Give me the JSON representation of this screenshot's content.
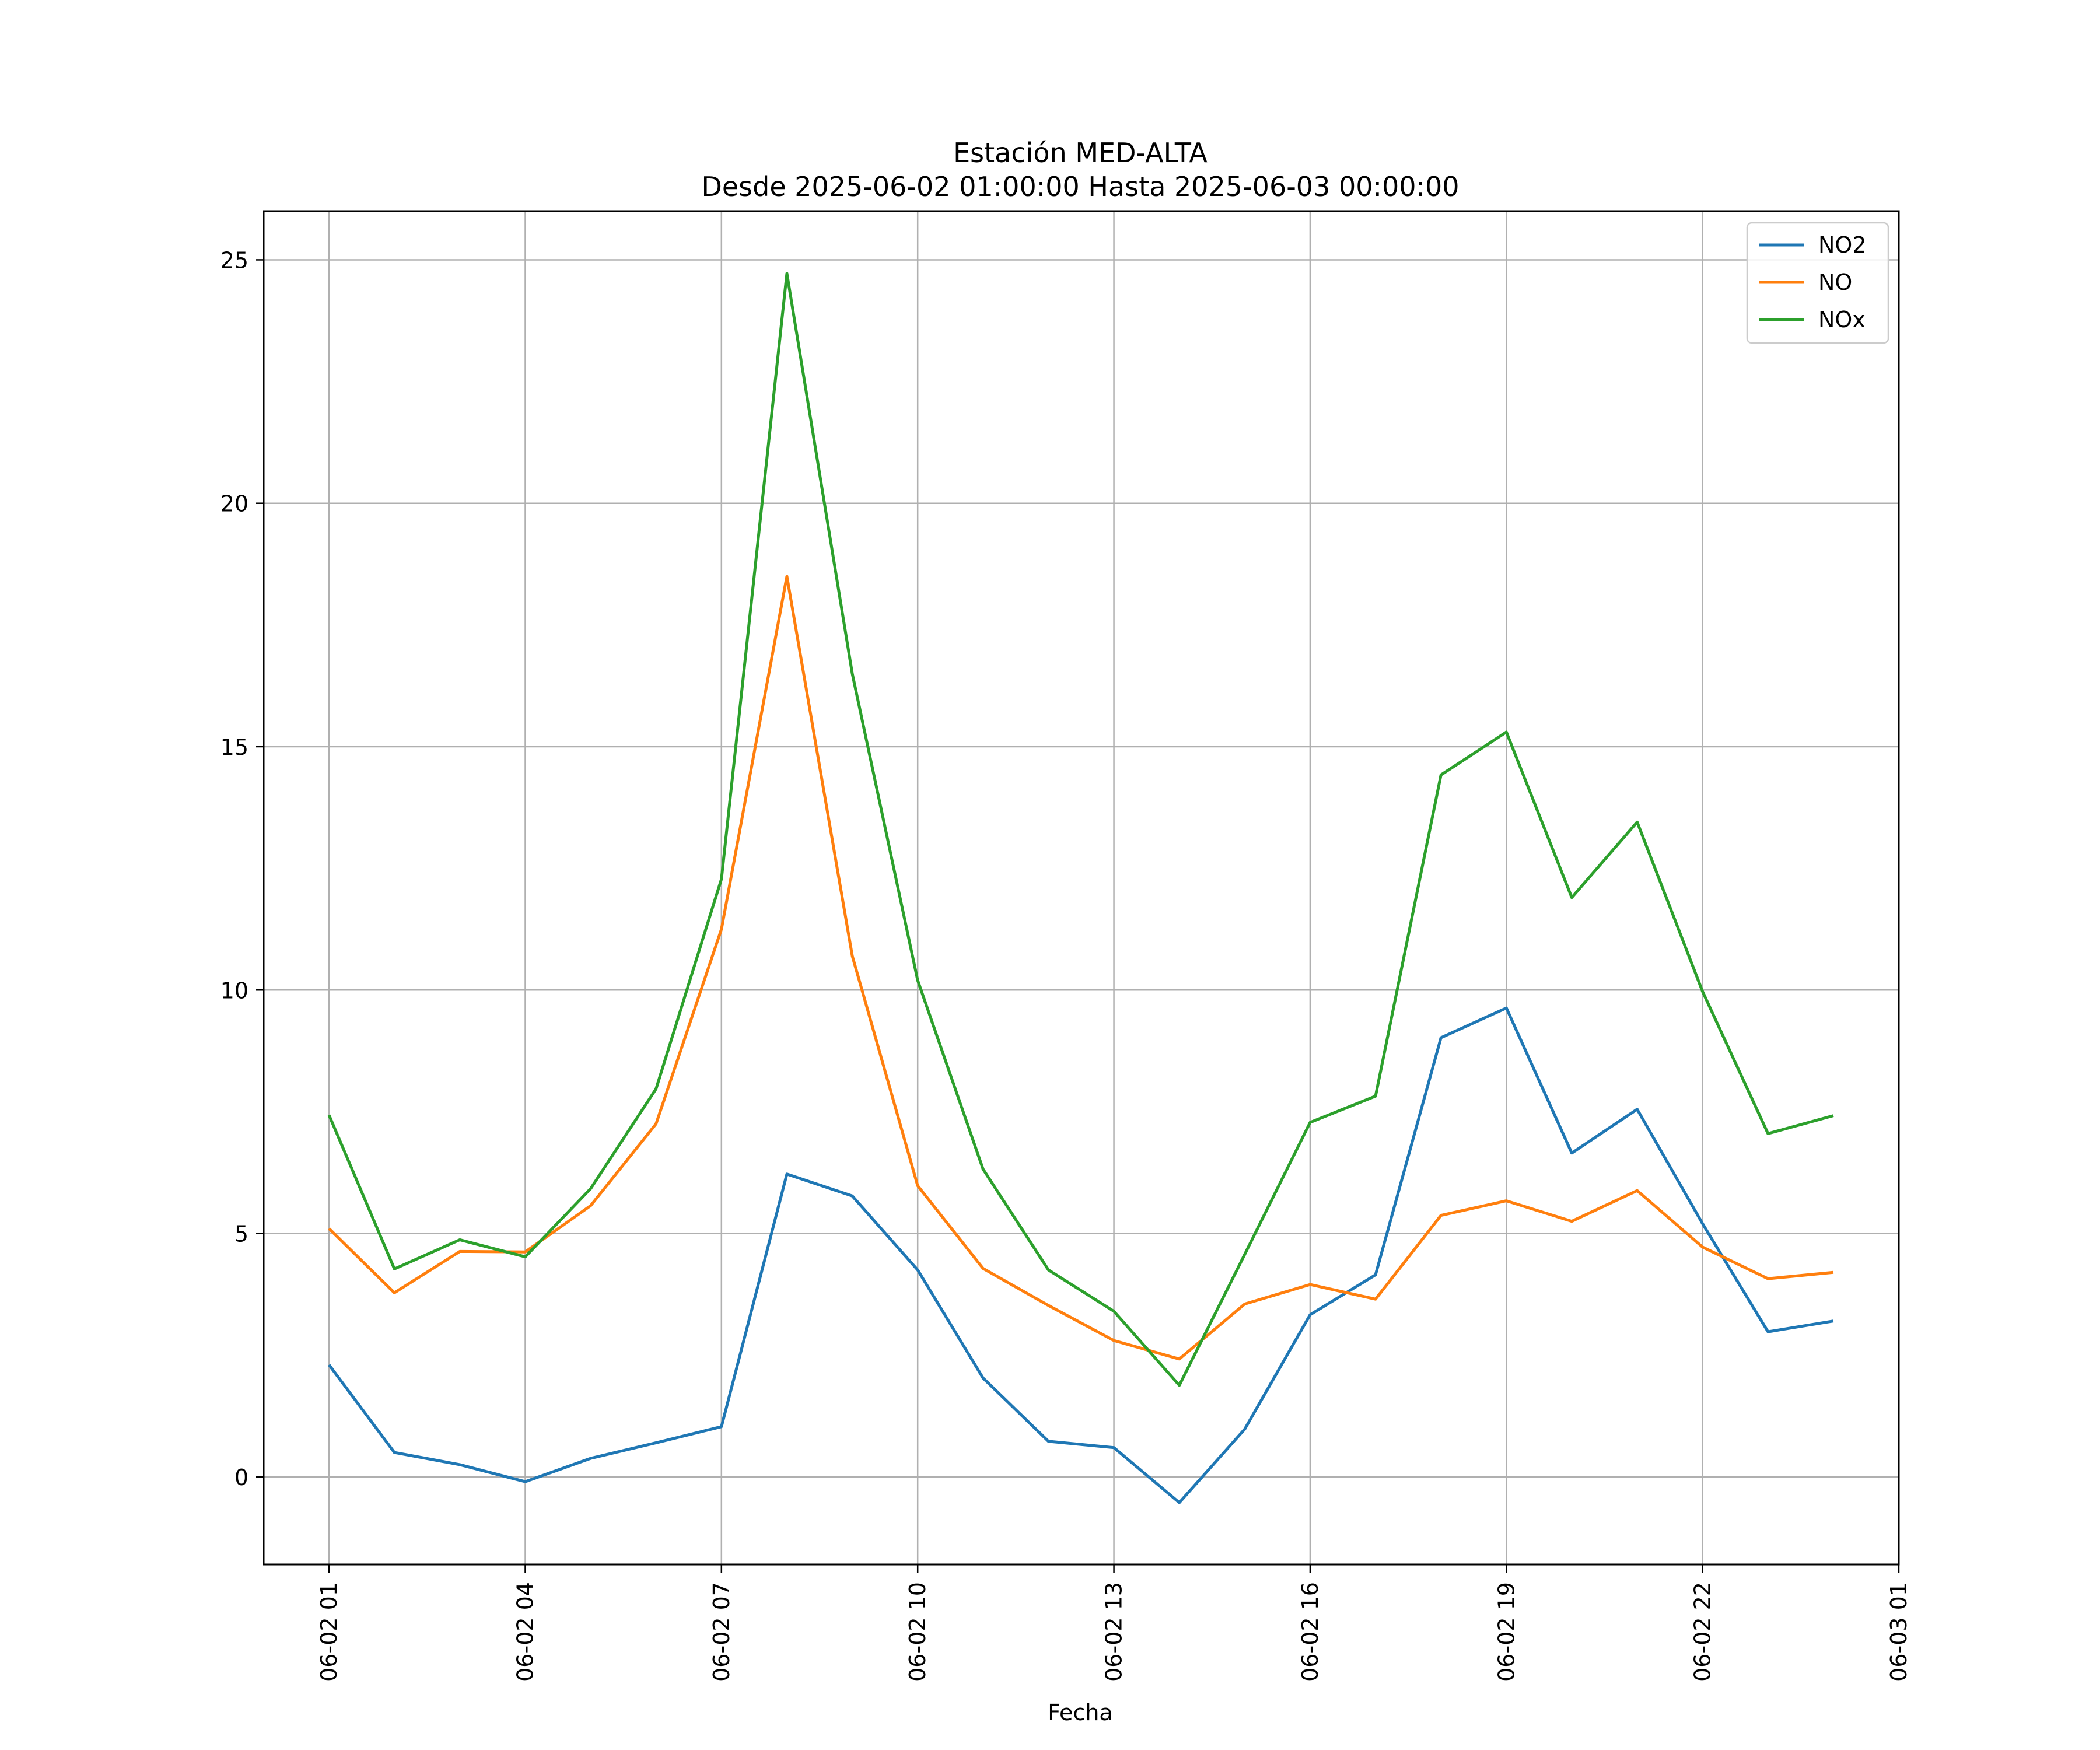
{
  "chart_data": {
    "type": "line",
    "title": "Estación MED-ALTA",
    "subtitle": "Desde 2025-06-02 01:00:00 Hasta 2025-06-03 00:00:00",
    "xlabel": "Fecha",
    "ylabel": "",
    "x": [
      "06-02 01:00",
      "06-02 02:00",
      "06-02 03:00",
      "06-02 04:00",
      "06-02 05:00",
      "06-02 06:00",
      "06-02 07:00",
      "06-02 08:00",
      "06-02 09:00",
      "06-02 10:00",
      "06-02 11:00",
      "06-02 12:00",
      "06-02 13:00",
      "06-02 14:00",
      "06-02 15:00",
      "06-02 16:00",
      "06-02 17:00",
      "06-02 18:00",
      "06-02 19:00",
      "06-02 20:00",
      "06-02 21:00",
      "06-02 22:00",
      "06-02 23:00",
      "06-03 00:00"
    ],
    "xlim": [
      "06-02 00:00",
      "06-03 01:00"
    ],
    "xticks": [
      "06-02 01",
      "06-02 04",
      "06-02 07",
      "06-02 10",
      "06-02 13",
      "06-02 16",
      "06-02 19",
      "06-02 22",
      "06-03 01"
    ],
    "ylim": [
      -1.8,
      26.0
    ],
    "yticks": [
      0,
      5,
      10,
      15,
      20,
      25
    ],
    "grid": true,
    "legend_position": "top-right",
    "series": [
      {
        "name": "NO2",
        "color": "#1f77b4",
        "values": [
          2.3,
          0.5,
          0.25,
          -0.1,
          0.38,
          0.7,
          1.03,
          6.22,
          5.77,
          4.25,
          2.03,
          0.73,
          0.6,
          -0.53,
          0.98,
          3.33,
          4.15,
          9.02,
          9.63,
          6.65,
          7.55,
          5.2,
          2.98,
          3.2
        ]
      },
      {
        "name": "NO",
        "color": "#ff7f0e",
        "values": [
          5.1,
          3.78,
          4.63,
          4.62,
          5.57,
          7.25,
          11.25,
          18.5,
          10.7,
          5.98,
          4.28,
          3.52,
          2.8,
          2.42,
          3.55,
          3.95,
          3.65,
          5.37,
          5.67,
          5.25,
          5.88,
          4.72,
          4.07,
          4.2
        ]
      },
      {
        "name": "NOx",
        "color": "#2ca02c",
        "values": [
          7.43,
          4.27,
          4.87,
          4.52,
          5.92,
          7.97,
          12.28,
          24.72,
          16.5,
          10.2,
          6.32,
          4.25,
          3.4,
          1.88,
          4.57,
          7.28,
          7.82,
          14.42,
          15.3,
          11.9,
          13.45,
          9.97,
          7.05,
          7.42
        ]
      }
    ]
  }
}
